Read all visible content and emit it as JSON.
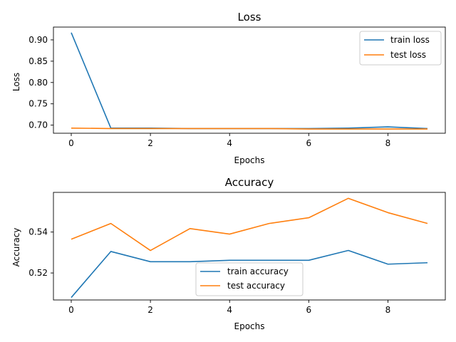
{
  "chart_data": [
    {
      "type": "line",
      "title": "Loss",
      "xlabel": "Epochs",
      "ylabel": "Loss",
      "x": [
        0,
        1,
        2,
        3,
        4,
        5,
        6,
        7,
        8,
        9
      ],
      "xlim": [
        -0.45,
        9.45
      ],
      "ylim": [
        0.681,
        0.93
      ],
      "xticks": [
        0,
        2,
        4,
        6,
        8
      ],
      "yticks": [
        0.7,
        0.75,
        0.8,
        0.85,
        0.9
      ],
      "ytick_labels": [
        "0.70",
        "0.75",
        "0.80",
        "0.85",
        "0.90"
      ],
      "legend_position": "top-right",
      "series": [
        {
          "name": "train loss",
          "color": "#1f77b4",
          "values": [
            0.917,
            0.693,
            0.693,
            0.692,
            0.692,
            0.692,
            0.692,
            0.693,
            0.696,
            0.692
          ]
        },
        {
          "name": "test loss",
          "color": "#ff7f0e",
          "values": [
            0.693,
            0.692,
            0.692,
            0.692,
            0.692,
            0.692,
            0.691,
            0.691,
            0.691,
            0.691
          ]
        }
      ]
    },
    {
      "type": "line",
      "title": "Accuracy",
      "xlabel": "Epochs",
      "ylabel": "Accuracy",
      "x": [
        0,
        1,
        2,
        3,
        4,
        5,
        6,
        7,
        8,
        9
      ],
      "xlim": [
        -0.45,
        9.45
      ],
      "ylim": [
        0.5068,
        0.5594
      ],
      "xticks": [
        0,
        2,
        4,
        6,
        8
      ],
      "yticks": [
        0.52,
        0.54
      ],
      "ytick_labels": [
        "0.52",
        "0.54"
      ],
      "legend_position": "lower-center",
      "series": [
        {
          "name": "train accuracy",
          "color": "#1f77b4",
          "values": [
            0.508,
            0.5305,
            0.5255,
            0.5255,
            0.5262,
            0.5262,
            0.5262,
            0.531,
            0.5243,
            0.525
          ]
        },
        {
          "name": "test accuracy",
          "color": "#ff7f0e",
          "values": [
            0.5365,
            0.5442,
            0.531,
            0.5417,
            0.539,
            0.5442,
            0.547,
            0.5565,
            0.5495,
            0.5442
          ]
        }
      ]
    }
  ]
}
